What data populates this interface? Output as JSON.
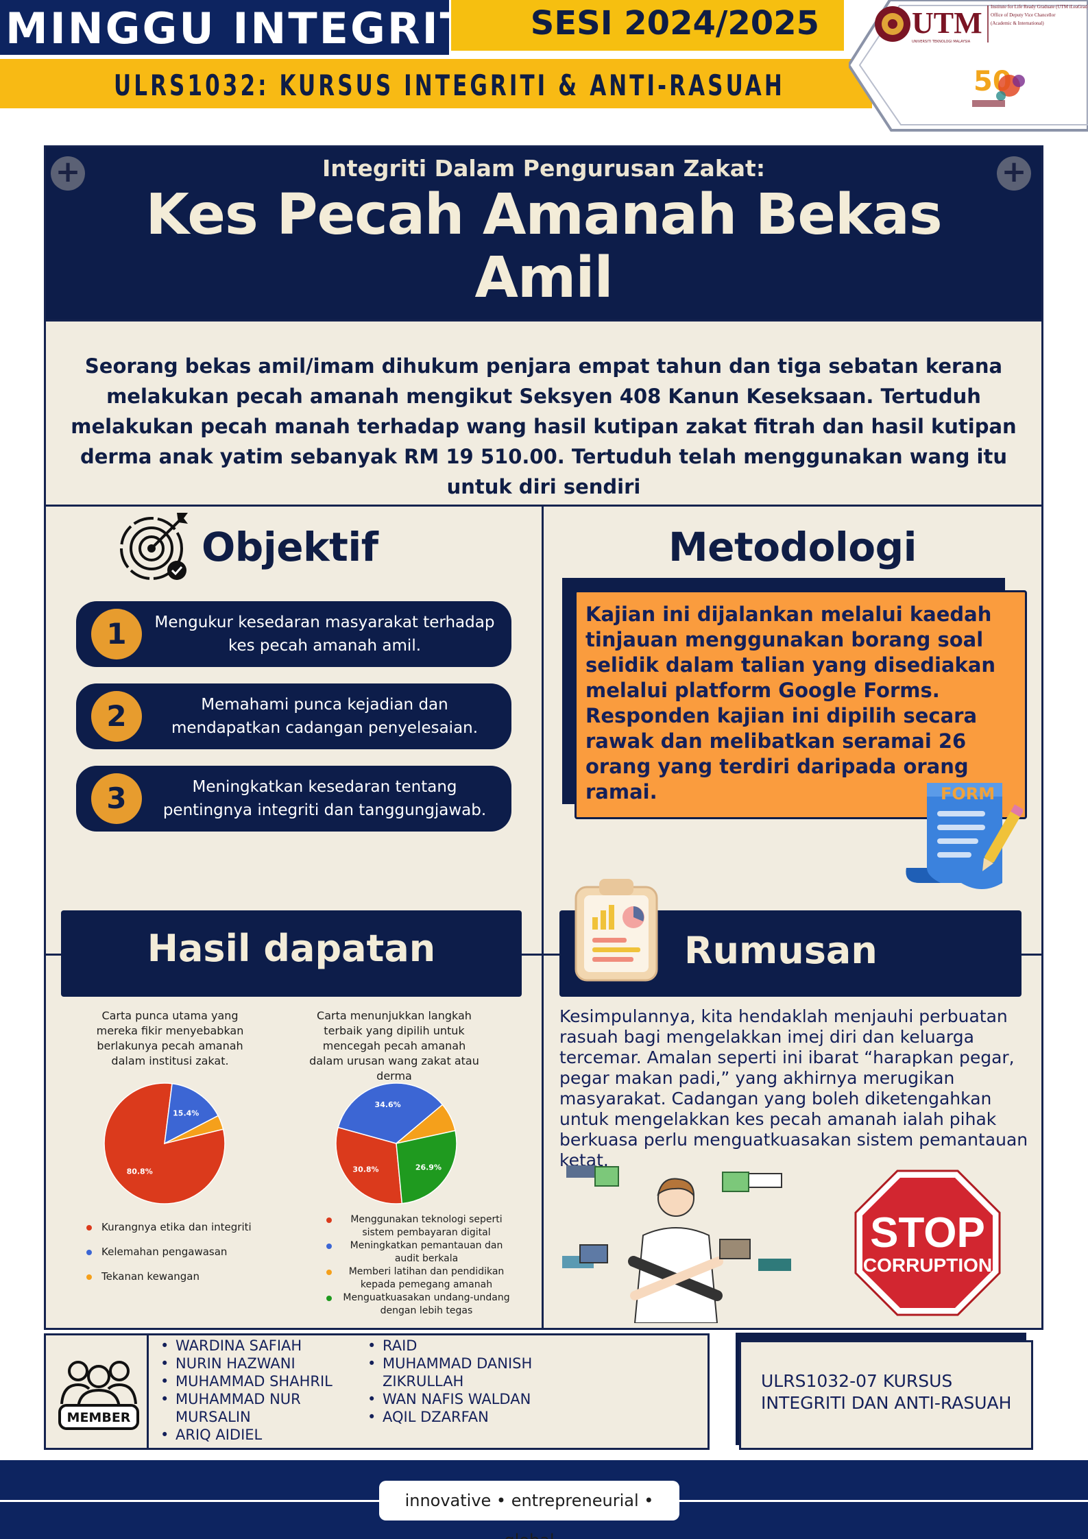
{
  "header": {
    "title": "MINGGU INTEGRITI",
    "session": "SESI 2024/2025",
    "course": "ULRS1032: KURSUS INTEGRITI & ANTI-RASUAH",
    "logo_text": "UTM",
    "logo_small": "UNIVERSITI TEKNOLOGI MALAYSIA",
    "logo_institute": [
      "Institute for Life Ready Graduate (UTM iLeaGrad)",
      "Office of Deputy Vice Chancellor",
      "(Academic & International)"
    ],
    "badge_number": "50"
  },
  "title_block": {
    "subtitle": "Integriti Dalam Pengurusan Zakat:",
    "title_line1": "Kes Pecah Amanah Bekas",
    "title_line2": "Amil"
  },
  "summary": "Seorang bekas amil/imam dihukum penjara empat tahun dan tiga sebatan kerana melakukan pecah amanah mengikut Seksyen 408 Kanun Keseksaan. Tertuduh melakukan pecah manah terhadap wang hasil kutipan zakat fitrah dan hasil kutipan derma anak yatim sebanyak RM 19 510.00. Tertuduh telah menggunakan wang itu untuk diri sendiri",
  "objektif": {
    "heading": "Objektif",
    "items": [
      {
        "num": "1",
        "text": "Mengukur kesedaran masyarakat terhadap kes pecah amanah amil."
      },
      {
        "num": "2",
        "text": "Memahami punca kejadian dan mendapatkan cadangan penyelesaian."
      },
      {
        "num": "3",
        "text": "Meningkatkan kesedaran tentang pentingnya integriti dan tanggungjawab."
      }
    ]
  },
  "metodologi": {
    "heading": "Metodologi",
    "text": "Kajian ini dijalankan melalui kaedah tinjauan menggunakan borang soal selidik dalam talian yang disediakan melalui platform Google Forms. Responden kajian ini dipilih secara rawak dan melibatkan seramai 26 orang yang terdiri  daripada orang ramai.",
    "form_label": "FORM"
  },
  "hasil": {
    "heading": "Hasil dapatan"
  },
  "chart_data": [
    {
      "type": "pie",
      "title": "Carta punca utama yang mereka fikir menyebabkan berlakunya pecah amanah dalam institusi zakat.",
      "labels": [
        "Kurangnya etika dan integriti",
        "Kelemahan pengawasan",
        "Tekanan kewangan"
      ],
      "values": [
        80.8,
        15.4,
        3.8
      ],
      "value_labels": [
        "80.8%",
        "15.4%",
        ""
      ],
      "colors": [
        "#db3a1c",
        "#3c66d4",
        "#f5a01b"
      ],
      "legend_position": "bottom-left"
    },
    {
      "type": "pie",
      "title": "Carta menunjukkan langkah terbaik yang dipilih untuk mencegah pecah amanah dalam urusan wang zakat atau derma",
      "labels": [
        "Menggunakan teknologi seperti sistem pembayaran digital",
        "Meningkatkan pemantauan dan audit berkala",
        "Memberi latihan dan pendidikan kepada pemegang amanah",
        "Menguatkuasakan undang-undang dengan lebih tegas"
      ],
      "values": [
        30.8,
        34.6,
        7.7,
        26.9
      ],
      "value_labels": [
        "30.8%",
        "34.6%",
        "",
        "26.9%"
      ],
      "colors": [
        "#db3a1c",
        "#3c66d4",
        "#f5a01b",
        "#1f9a1f"
      ],
      "legend_position": "bottom"
    }
  ],
  "rumusan": {
    "heading": "Rumusan",
    "text": "Kesimpulannya, kita hendaklah menjauhi perbuatan rasuah bagi mengelakkan imej diri dan keluarga tercemar. Amalan seperti ini ibarat “harapkan pegar, pegar makan padi,” yang akhirnya merugikan masyarakat. Cadangan yang boleh diketengahkan untuk mengelakkan kes pecah amanah ialah pihak berkuasa perlu menguatkuasakan sistem pemantauan ketat.",
    "stop_line1": "STOP",
    "stop_line2": "CORRUPTION"
  },
  "members": {
    "label": "MEMBER",
    "col1": [
      "WARDINA SAFIAH",
      "NURIN HAZWANI",
      "MUHAMMAD SHAHRIL",
      "MUHAMMAD NUR MURSALIN",
      "ARIQ AIDIEL"
    ],
    "col2": [
      "RAID",
      "MUHAMMAD DANISH ZIKRULLAH",
      "WAN NAFIS WALDAN",
      "AQIL DZARFAN"
    ]
  },
  "course_code": "ULRS1032-07 KURSUS INTEGRITI DAN ANTI-RASUAH",
  "footer": {
    "tagline": "innovative • entrepreneurial • global"
  }
}
